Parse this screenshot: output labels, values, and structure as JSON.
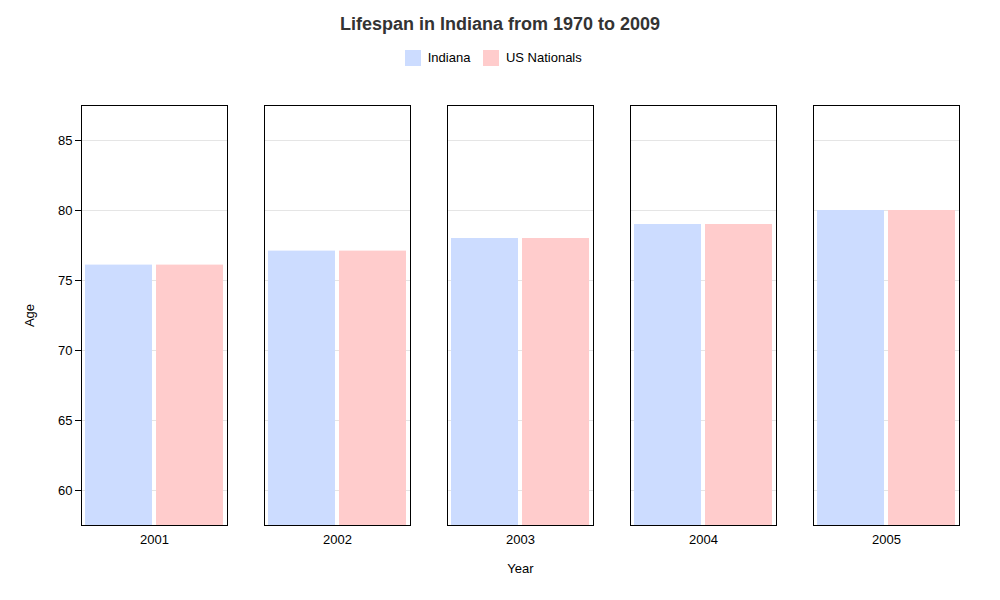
{
  "chart_data": {
    "type": "bar",
    "title": "Lifespan in Indiana from 1970 to 2009",
    "xlabel": "Year",
    "ylabel": "Age",
    "categories": [
      "2001",
      "2002",
      "2003",
      "2004",
      "2005"
    ],
    "series": [
      {
        "name": "Indiana",
        "color": "#ccdcff",
        "values": [
          76.1,
          77.1,
          78.0,
          79.0,
          80.0
        ]
      },
      {
        "name": "US Nationals",
        "color": "#ffcccc",
        "values": [
          76.1,
          77.1,
          78.0,
          79.0,
          80.0
        ]
      }
    ],
    "ylim": [
      57.5,
      87.5
    ],
    "yticks": [
      60,
      65,
      70,
      75,
      80,
      85
    ],
    "grid": true,
    "legend": "top"
  }
}
